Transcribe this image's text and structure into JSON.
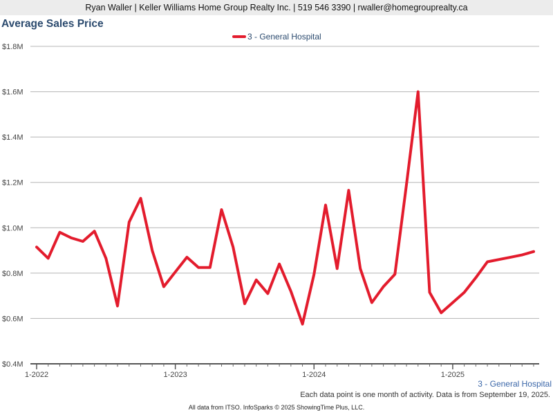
{
  "header": {
    "contact": "Ryan Waller | Keller Williams Home Group Realty Inc. | 519 546 3390 | rwaller@homegrouprealty.ca"
  },
  "colors": {
    "series": "#e31c2d",
    "title": "#2b4a6e",
    "grid": "#b5b5b5"
  },
  "chart_data": {
    "type": "line",
    "title": "Average Sales Price",
    "xlabel": "",
    "ylabel": "",
    "ylim": [
      400000,
      1800000
    ],
    "y_ticks": [
      400000,
      600000,
      800000,
      1000000,
      1200000,
      1400000,
      1600000,
      1800000
    ],
    "y_tick_labels": [
      "$0.4M",
      "$0.6M",
      "$0.8M",
      "$1.0M",
      "$1.2M",
      "$1.4M",
      "$1.6M",
      "$1.8M"
    ],
    "x_tick_labels": [
      "1-2022",
      "1-2023",
      "1-2024",
      "1-2025"
    ],
    "x_ticks": [
      "2022-01",
      "2023-01",
      "2024-01",
      "2025-01"
    ],
    "x": [
      "2022-01",
      "2022-02",
      "2022-03",
      "2022-04",
      "2022-05",
      "2022-06",
      "2022-07",
      "2022-08",
      "2022-09",
      "2022-10",
      "2022-11",
      "2022-12",
      "2023-01",
      "2023-02",
      "2023-03",
      "2023-04",
      "2023-05",
      "2023-06",
      "2023-07",
      "2023-08",
      "2023-09",
      "2023-10",
      "2023-11",
      "2023-12",
      "2024-01",
      "2024-02",
      "2024-03",
      "2024-04",
      "2024-05",
      "2024-06",
      "2024-07",
      "2024-08",
      "2024-09",
      "2024-10",
      "2024-11",
      "2024-12",
      "2025-01",
      "2025-02",
      "2025-03",
      "2025-04",
      "2025-05",
      "2025-06",
      "2025-07",
      "2025-08"
    ],
    "grid": true,
    "legend_position": "top-center",
    "series": [
      {
        "name": "3 - General Hospital",
        "values": [
          915000,
          865000,
          980000,
          955000,
          940000,
          985000,
          865000,
          655000,
          1025000,
          1130000,
          900000,
          740000,
          805000,
          870000,
          825000,
          825000,
          1080000,
          915000,
          665000,
          770000,
          710000,
          840000,
          720000,
          575000,
          795000,
          1100000,
          820000,
          1165000,
          820000,
          670000,
          740000,
          795000,
          1190000,
          1600000,
          715000,
          625000,
          670000,
          715000,
          780000,
          850000,
          860000,
          870000,
          880000,
          895000
        ]
      }
    ]
  },
  "region_label": "3 - General Hospital",
  "footnote": "Each data point is one month of activity. Data is from September 19, 2025.",
  "credits": "All data from ITSO. InfoSparks © 2025 ShowingTime Plus, LLC."
}
